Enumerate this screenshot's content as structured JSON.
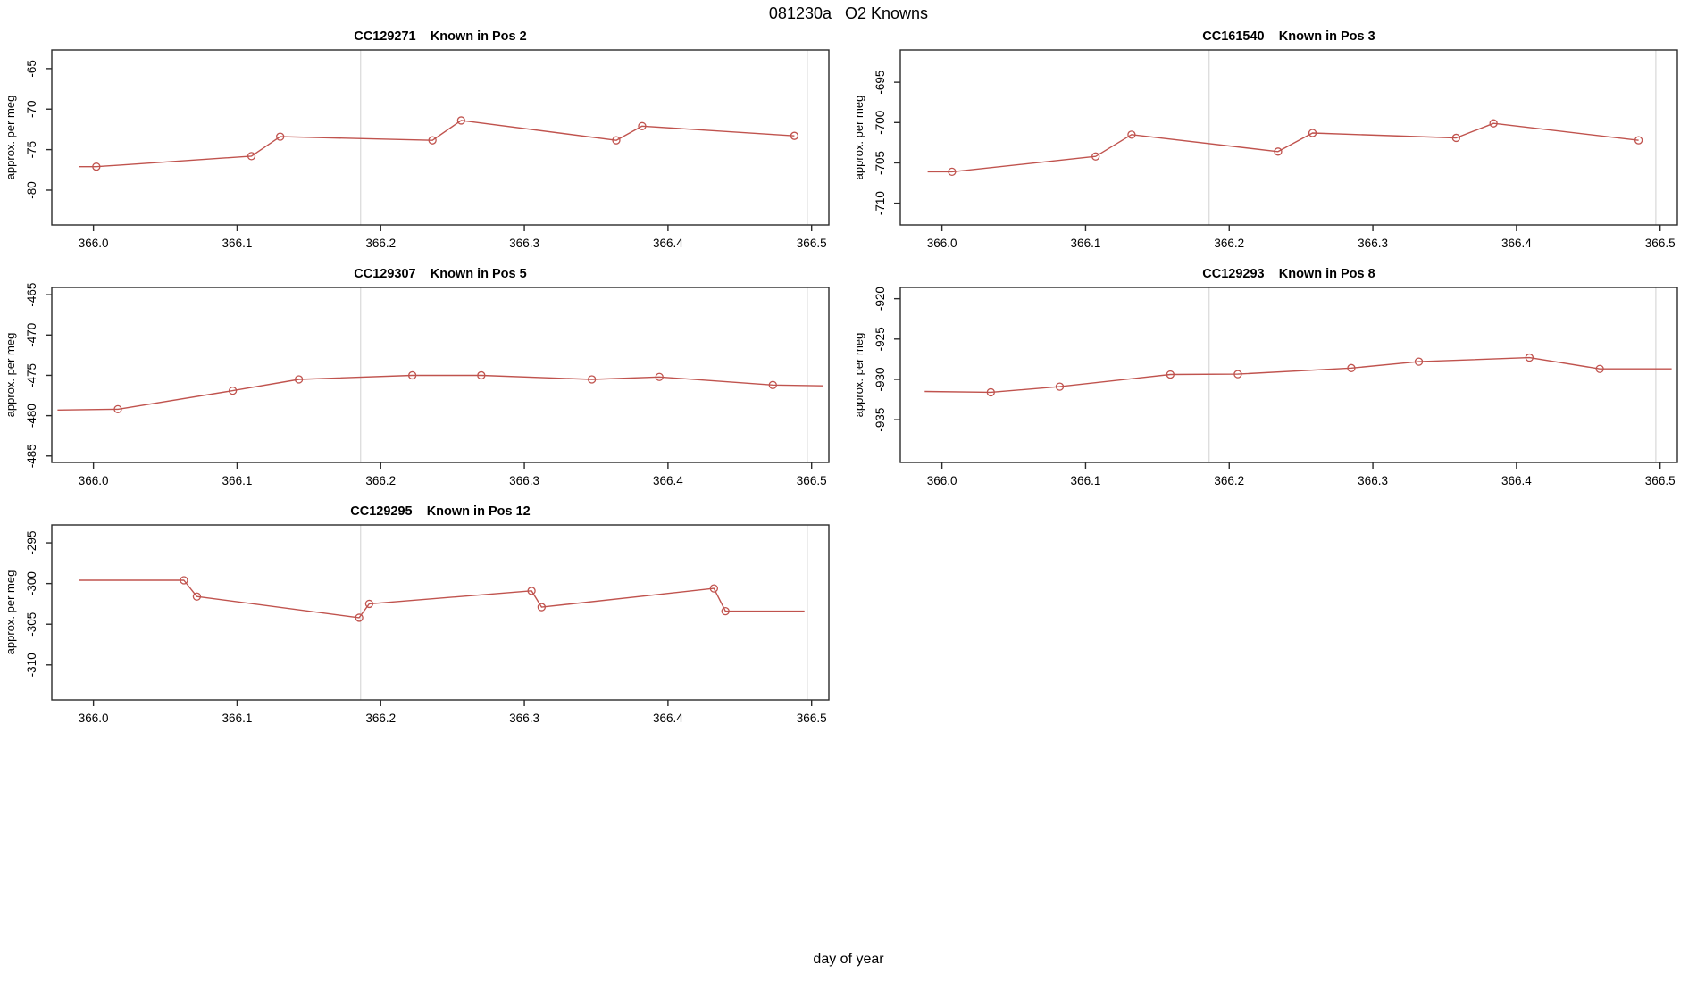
{
  "page_title": "081230a   O2 Knowns",
  "outer_xlabel": "day of year",
  "colors": {
    "line": "#c0534e",
    "grid": "#d8d8d8",
    "box": "#2b2b2b",
    "text": "#000000",
    "background": "#ffffff"
  },
  "chart_data": [
    {
      "type": "line",
      "title": "CC129271    Known in Pos 2",
      "ylabel": "approx. per meg",
      "xlim": [
        365.971,
        366.512
      ],
      "ylim": [
        -84.3,
        -62.7
      ],
      "xticks": {
        "values": [
          366.0,
          366.1,
          366.2,
          366.3,
          366.4,
          366.5
        ],
        "labels": [
          "366.0",
          "366.1",
          "366.2",
          "366.3",
          "366.4",
          "366.5"
        ]
      },
      "yticks": {
        "values": [
          -80,
          -75,
          -70,
          -65
        ],
        "labels": [
          "-80",
          "-75",
          "-70",
          "-65"
        ]
      },
      "vlines": [
        366.186,
        366.497
      ],
      "line": {
        "x": [
          365.99,
          366.002,
          366.11,
          366.13,
          366.236,
          366.256,
          366.364,
          366.382,
          366.488
        ],
        "y": [
          -77.1,
          -77.1,
          -75.8,
          -73.4,
          -73.85,
          -71.4,
          -73.85,
          -72.1,
          -73.3
        ]
      },
      "markers": {
        "x": [
          366.002,
          366.11,
          366.13,
          366.236,
          366.256,
          366.364,
          366.382,
          366.488
        ],
        "y": [
          -77.1,
          -75.8,
          -73.4,
          -73.85,
          -71.4,
          -73.85,
          -72.1,
          -73.3
        ]
      }
    },
    {
      "type": "line",
      "title": "CC161540    Known in Pos 3",
      "ylabel": "approx. per meg",
      "xlim": [
        365.971,
        366.512
      ],
      "ylim": [
        -712.7,
        -691.0
      ],
      "xticks": {
        "values": [
          366.0,
          366.1,
          366.2,
          366.3,
          366.4,
          366.5
        ],
        "labels": [
          "366.0",
          "366.1",
          "366.2",
          "366.3",
          "366.4",
          "366.5"
        ]
      },
      "yticks": {
        "values": [
          -710,
          -705,
          -700,
          -695
        ],
        "labels": [
          "-710",
          "-705",
          "-700",
          "-695"
        ]
      },
      "vlines": [
        366.186,
        366.497
      ],
      "line": {
        "x": [
          365.99,
          366.007,
          366.107,
          366.132,
          366.234,
          366.258,
          366.358,
          366.384,
          366.485
        ],
        "y": [
          -706.1,
          -706.1,
          -704.2,
          -701.5,
          -703.6,
          -701.3,
          -701.9,
          -700.1,
          -702.2
        ]
      },
      "markers": {
        "x": [
          366.007,
          366.107,
          366.132,
          366.234,
          366.258,
          366.358,
          366.384,
          366.485
        ],
        "y": [
          -706.1,
          -704.2,
          -701.5,
          -703.6,
          -701.3,
          -701.9,
          -700.1,
          -702.2
        ]
      }
    },
    {
      "type": "line",
      "title": "CC129307    Known in Pos 5",
      "ylabel": "approx. per meg",
      "xlim": [
        365.971,
        366.512
      ],
      "ylim": [
        -485.8,
        -464.1
      ],
      "xticks": {
        "values": [
          366.0,
          366.1,
          366.2,
          366.3,
          366.4,
          366.5
        ],
        "labels": [
          "366.0",
          "366.1",
          "366.2",
          "366.3",
          "366.4",
          "366.5"
        ]
      },
      "yticks": {
        "values": [
          -485,
          -480,
          -475,
          -470,
          -465
        ],
        "labels": [
          "-485",
          "-480",
          "-475",
          "-470",
          "-465"
        ]
      },
      "vlines": [
        366.186,
        366.497
      ],
      "line": {
        "x": [
          365.975,
          366.017,
          366.097,
          366.143,
          366.222,
          366.27,
          366.347,
          366.394,
          366.473,
          366.508
        ],
        "y": [
          -479.3,
          -479.2,
          -476.9,
          -475.5,
          -475.0,
          -475.0,
          -475.5,
          -475.2,
          -476.2,
          -476.3
        ]
      },
      "markers": {
        "x": [
          366.017,
          366.097,
          366.143,
          366.222,
          366.27,
          366.347,
          366.394,
          366.473
        ],
        "y": [
          -479.2,
          -476.9,
          -475.5,
          -475.0,
          -475.0,
          -475.5,
          -475.2,
          -476.2
        ]
      }
    },
    {
      "type": "line",
      "title": "CC129293    Known in Pos 8",
      "ylabel": "approx. per meg",
      "xlim": [
        365.971,
        366.512
      ],
      "ylim": [
        -940.3,
        -918.6
      ],
      "xticks": {
        "values": [
          366.0,
          366.1,
          366.2,
          366.3,
          366.4,
          366.5
        ],
        "labels": [
          "366.0",
          "366.1",
          "366.2",
          "366.3",
          "366.4",
          "366.5"
        ]
      },
      "yticks": {
        "values": [
          -935,
          -930,
          -925,
          -920
        ],
        "labels": [
          "-935",
          "-930",
          "-925",
          "-920"
        ]
      },
      "vlines": [
        366.186,
        366.497
      ],
      "line": {
        "x": [
          365.988,
          366.034,
          366.082,
          366.159,
          366.206,
          366.285,
          366.332,
          366.409,
          366.458,
          366.508
        ],
        "y": [
          -931.5,
          -931.6,
          -930.9,
          -929.4,
          -929.35,
          -928.6,
          -927.8,
          -927.3,
          -928.7,
          -928.7
        ]
      },
      "markers": {
        "x": [
          366.034,
          366.082,
          366.159,
          366.206,
          366.285,
          366.332,
          366.409,
          366.458
        ],
        "y": [
          -931.6,
          -930.9,
          -929.4,
          -929.35,
          -928.6,
          -927.8,
          -927.3,
          -928.7
        ]
      }
    },
    {
      "type": "line",
      "title": "CC129295    Known in Pos 12",
      "ylabel": "approx. per meg",
      "xlim": [
        365.971,
        366.512
      ],
      "ylim": [
        -314.3,
        -292.8
      ],
      "xticks": {
        "values": [
          366.0,
          366.1,
          366.2,
          366.3,
          366.4,
          366.5
        ],
        "labels": [
          "366.0",
          "366.1",
          "366.2",
          "366.3",
          "366.4",
          "366.5"
        ]
      },
      "yticks": {
        "values": [
          -310,
          -305,
          -300,
          -295
        ],
        "labels": [
          "-310",
          "-305",
          "-300",
          "-295"
        ]
      },
      "vlines": [
        366.186,
        366.497
      ],
      "line": {
        "x": [
          365.99,
          366.063,
          366.072,
          366.185,
          366.192,
          366.305,
          366.312,
          366.432,
          366.44,
          366.495
        ],
        "y": [
          -299.6,
          -299.6,
          -301.6,
          -304.2,
          -302.5,
          -300.9,
          -302.9,
          -300.6,
          -303.4,
          -303.4
        ]
      },
      "markers": {
        "x": [
          366.063,
          366.072,
          366.185,
          366.192,
          366.305,
          366.312,
          366.432,
          366.44
        ],
        "y": [
          -299.6,
          -301.6,
          -304.2,
          -302.5,
          -300.9,
          -302.9,
          -300.6,
          -303.4
        ]
      }
    }
  ]
}
